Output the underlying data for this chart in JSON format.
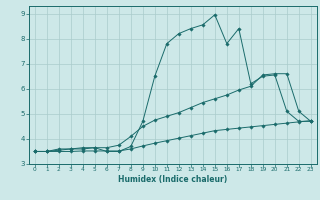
{
  "title": "",
  "xlabel": "Humidex (Indice chaleur)",
  "bg_color": "#cde8e8",
  "grid_color": "#aacccc",
  "line_color": "#1a6b6b",
  "xlim": [
    -0.5,
    23.5
  ],
  "ylim": [
    3.0,
    9.3
  ],
  "xticks": [
    0,
    1,
    2,
    3,
    4,
    5,
    6,
    7,
    8,
    9,
    10,
    11,
    12,
    13,
    14,
    15,
    16,
    17,
    18,
    19,
    20,
    21,
    22,
    23
  ],
  "yticks": [
    3,
    4,
    5,
    6,
    7,
    8,
    9
  ],
  "line1_x": [
    0,
    1,
    2,
    3,
    4,
    5,
    6,
    7,
    8,
    9,
    10,
    11,
    12,
    13,
    14,
    15,
    16,
    17,
    18,
    19,
    20,
    21,
    22,
    23
  ],
  "line1_y": [
    3.5,
    3.5,
    3.6,
    3.6,
    3.65,
    3.65,
    3.5,
    3.5,
    3.7,
    4.7,
    6.5,
    7.8,
    8.2,
    8.4,
    8.55,
    8.95,
    7.8,
    8.4,
    6.2,
    6.5,
    6.55,
    5.1,
    4.7,
    4.7
  ],
  "line2_x": [
    0,
    1,
    2,
    3,
    4,
    5,
    6,
    7,
    8,
    9,
    10,
    11,
    12,
    13,
    14,
    15,
    16,
    17,
    18,
    19,
    20,
    21,
    22,
    23
  ],
  "line2_y": [
    3.5,
    3.5,
    3.55,
    3.6,
    3.6,
    3.65,
    3.65,
    3.75,
    4.1,
    4.5,
    4.75,
    4.9,
    5.05,
    5.25,
    5.45,
    5.6,
    5.75,
    5.95,
    6.1,
    6.55,
    6.6,
    6.6,
    5.1,
    4.7
  ],
  "line3_x": [
    0,
    1,
    2,
    3,
    4,
    5,
    6,
    7,
    8,
    9,
    10,
    11,
    12,
    13,
    14,
    15,
    16,
    17,
    18,
    19,
    20,
    21,
    22,
    23
  ],
  "line3_y": [
    3.5,
    3.5,
    3.5,
    3.5,
    3.52,
    3.52,
    3.52,
    3.52,
    3.6,
    3.72,
    3.83,
    3.93,
    4.03,
    4.13,
    4.23,
    4.33,
    4.38,
    4.43,
    4.48,
    4.53,
    4.58,
    4.63,
    4.68,
    4.73
  ]
}
